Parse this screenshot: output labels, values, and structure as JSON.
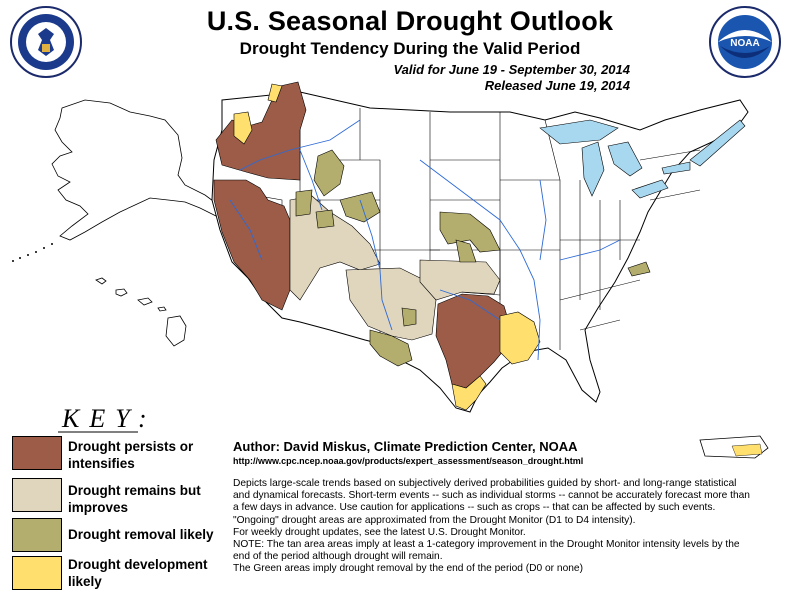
{
  "header": {
    "title": "U.S. Seasonal Drought Outlook",
    "subtitle": "Drought Tendency During the Valid Period",
    "valid": "Valid for June 19 - September 30, 2014",
    "released": "Released June 19, 2014"
  },
  "key": {
    "title": "KEY:",
    "items": [
      {
        "label": "Drought persists or intensifies",
        "color": "#9c5c48"
      },
      {
        "label": "Drought remains but improves",
        "color": "#e0d5bd"
      },
      {
        "label": "Drought removal likely",
        "color": "#b3ae6d"
      },
      {
        "label": "Drought development likely",
        "color": "#ffdf6e"
      }
    ]
  },
  "author": "Author: David Miskus, Climate Prediction Center, NOAA",
  "url": "http://www.cpc.ncep.noaa.gov/products/expert_assessment/season_drought.html",
  "description": [
    "Depicts large-scale trends based on subjectively derived probabilities guided by short- and long-range statistical and dynamical forecasts. Short-term events -- such as individual storms -- cannot be accurately forecast more than a few days in advance. Use caution for applications -- such as crops -- that can be affected by such events. \"Ongoing\" drought areas are approximated from the Drought Monitor (D1 to D4 intensity).",
    "For weekly drought updates, see the latest U.S. Drought Monitor.",
    "NOTE: The tan area areas imply at least a 1-category improvement in the Drought Monitor intensity levels by the end of the period although drought will remain.",
    "The Green areas imply drought removal by the end of the period (D0 or none)"
  ],
  "colors": {
    "water": "#a8d8f0",
    "boundary": "#000000",
    "river": "#2d6ad6"
  },
  "logos": {
    "left": "department-of-commerce-seal",
    "right": "noaa-logo",
    "right_text": "NOAA"
  }
}
